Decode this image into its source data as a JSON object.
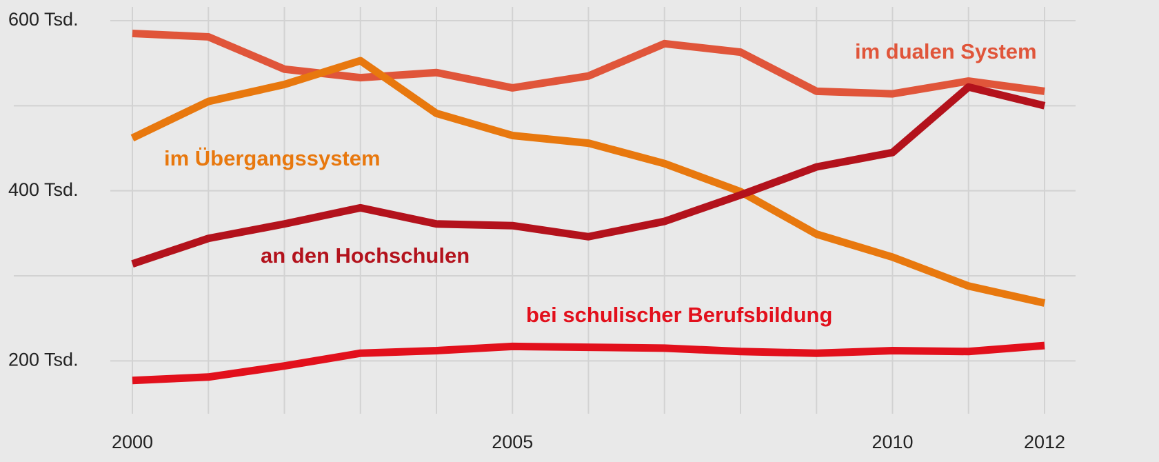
{
  "chart_data": {
    "type": "line",
    "x": [
      2000,
      2001,
      2002,
      2003,
      2004,
      2005,
      2006,
      2007,
      2008,
      2009,
      2010,
      2011,
      2012
    ],
    "series": [
      {
        "name": "im dualen System",
        "color": "#e0553a",
        "values": [
          585,
          581,
          543,
          533,
          539,
          521,
          535,
          573,
          563,
          517,
          514,
          529,
          517
        ]
      },
      {
        "name": "im Übergangssystem",
        "color": "#e8780e",
        "values": [
          462,
          505,
          525,
          553,
          491,
          465,
          456,
          432,
          399,
          349,
          322,
          288,
          268
        ]
      },
      {
        "name": "an den Hochschulen",
        "color": "#b3121c",
        "values": [
          314,
          344,
          361,
          380,
          361,
          359,
          346,
          364,
          395,
          428,
          445,
          522,
          500
        ]
      },
      {
        "name": "bei schulischer Berufsbildung",
        "color": "#e2101c",
        "values": [
          177,
          181,
          194,
          209,
          212,
          217,
          216,
          215,
          211,
          209,
          212,
          211,
          218
        ]
      }
    ],
    "xlim": [
      2000,
      2012
    ],
    "xticks": [
      2000,
      2005,
      2010,
      2012
    ],
    "ylim": [
      150,
      600
    ],
    "yticks": [
      {
        "value": 200,
        "label": "200 Tsd."
      },
      {
        "value": 400,
        "label": "400 Tsd."
      },
      {
        "value": 600,
        "label": "600 Tsd."
      }
    ],
    "minor_yticks": [
      300,
      500
    ],
    "grid": true
  }
}
